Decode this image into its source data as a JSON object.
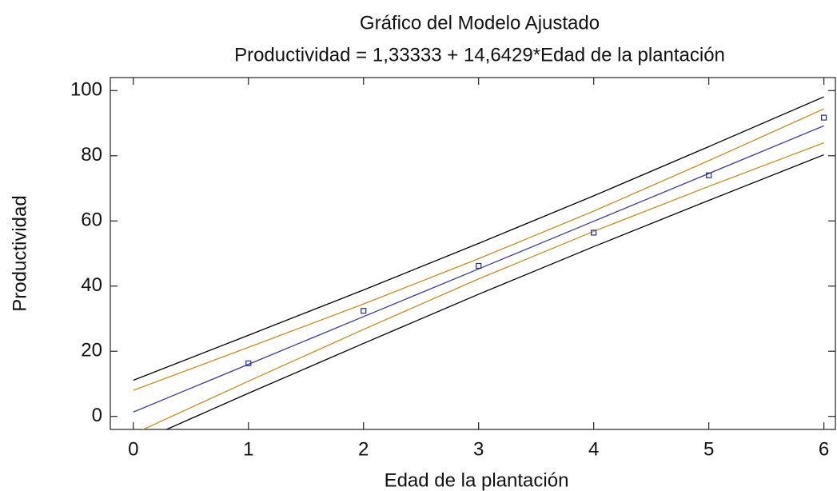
{
  "chart_data": {
    "type": "regression",
    "title": "Gráfico del Modelo Ajustado",
    "subtitle": "Productividad = 1,33333 + 14,6429*Edad de la plantación",
    "x_label": "Edad de la plantación",
    "y_label": "Productividad",
    "xlim": [
      -0.2,
      6.1
    ],
    "xticks": [
      0,
      1,
      2,
      3,
      4,
      5,
      6
    ],
    "ylim": [
      -4,
      104
    ],
    "yticks": [
      0,
      20,
      40,
      60,
      80,
      100
    ],
    "points": {
      "color": "#1f2a9f",
      "x": [
        1,
        2,
        3,
        4,
        5,
        6
      ],
      "values": [
        16.3,
        32.4,
        46.2,
        56.4,
        74.0,
        91.7
      ]
    },
    "series": [
      {
        "color": "#000000",
        "x": [
          0,
          1,
          2,
          3,
          4,
          5,
          6
        ],
        "values": [
          11.1,
          24.9,
          38.8,
          53.1,
          67.7,
          82.8,
          98.1
        ]
      },
      {
        "color": "#d08a1a",
        "x": [
          0,
          1,
          2,
          3,
          4,
          5,
          6
        ],
        "values": [
          8.0,
          21.2,
          34.5,
          48.4,
          63.0,
          78.5,
          94.4
        ]
      },
      {
        "color": "#3a3aa8",
        "x": [
          0,
          1,
          2,
          3,
          4,
          5,
          6
        ],
        "values": [
          1.33,
          15.98,
          30.62,
          45.26,
          59.9,
          74.55,
          89.19
        ]
      },
      {
        "color": "#d08a1a",
        "x": [
          0,
          1,
          2,
          3,
          4,
          5,
          6
        ],
        "values": [
          -5.4,
          10.8,
          26.7,
          42.2,
          56.8,
          70.6,
          84.0
        ]
      },
      {
        "color": "#000000",
        "x": [
          0,
          1,
          2,
          3,
          4,
          5,
          6
        ],
        "values": [
          -8.5,
          7.1,
          22.4,
          37.5,
          52.1,
          66.3,
          80.3
        ]
      }
    ]
  }
}
